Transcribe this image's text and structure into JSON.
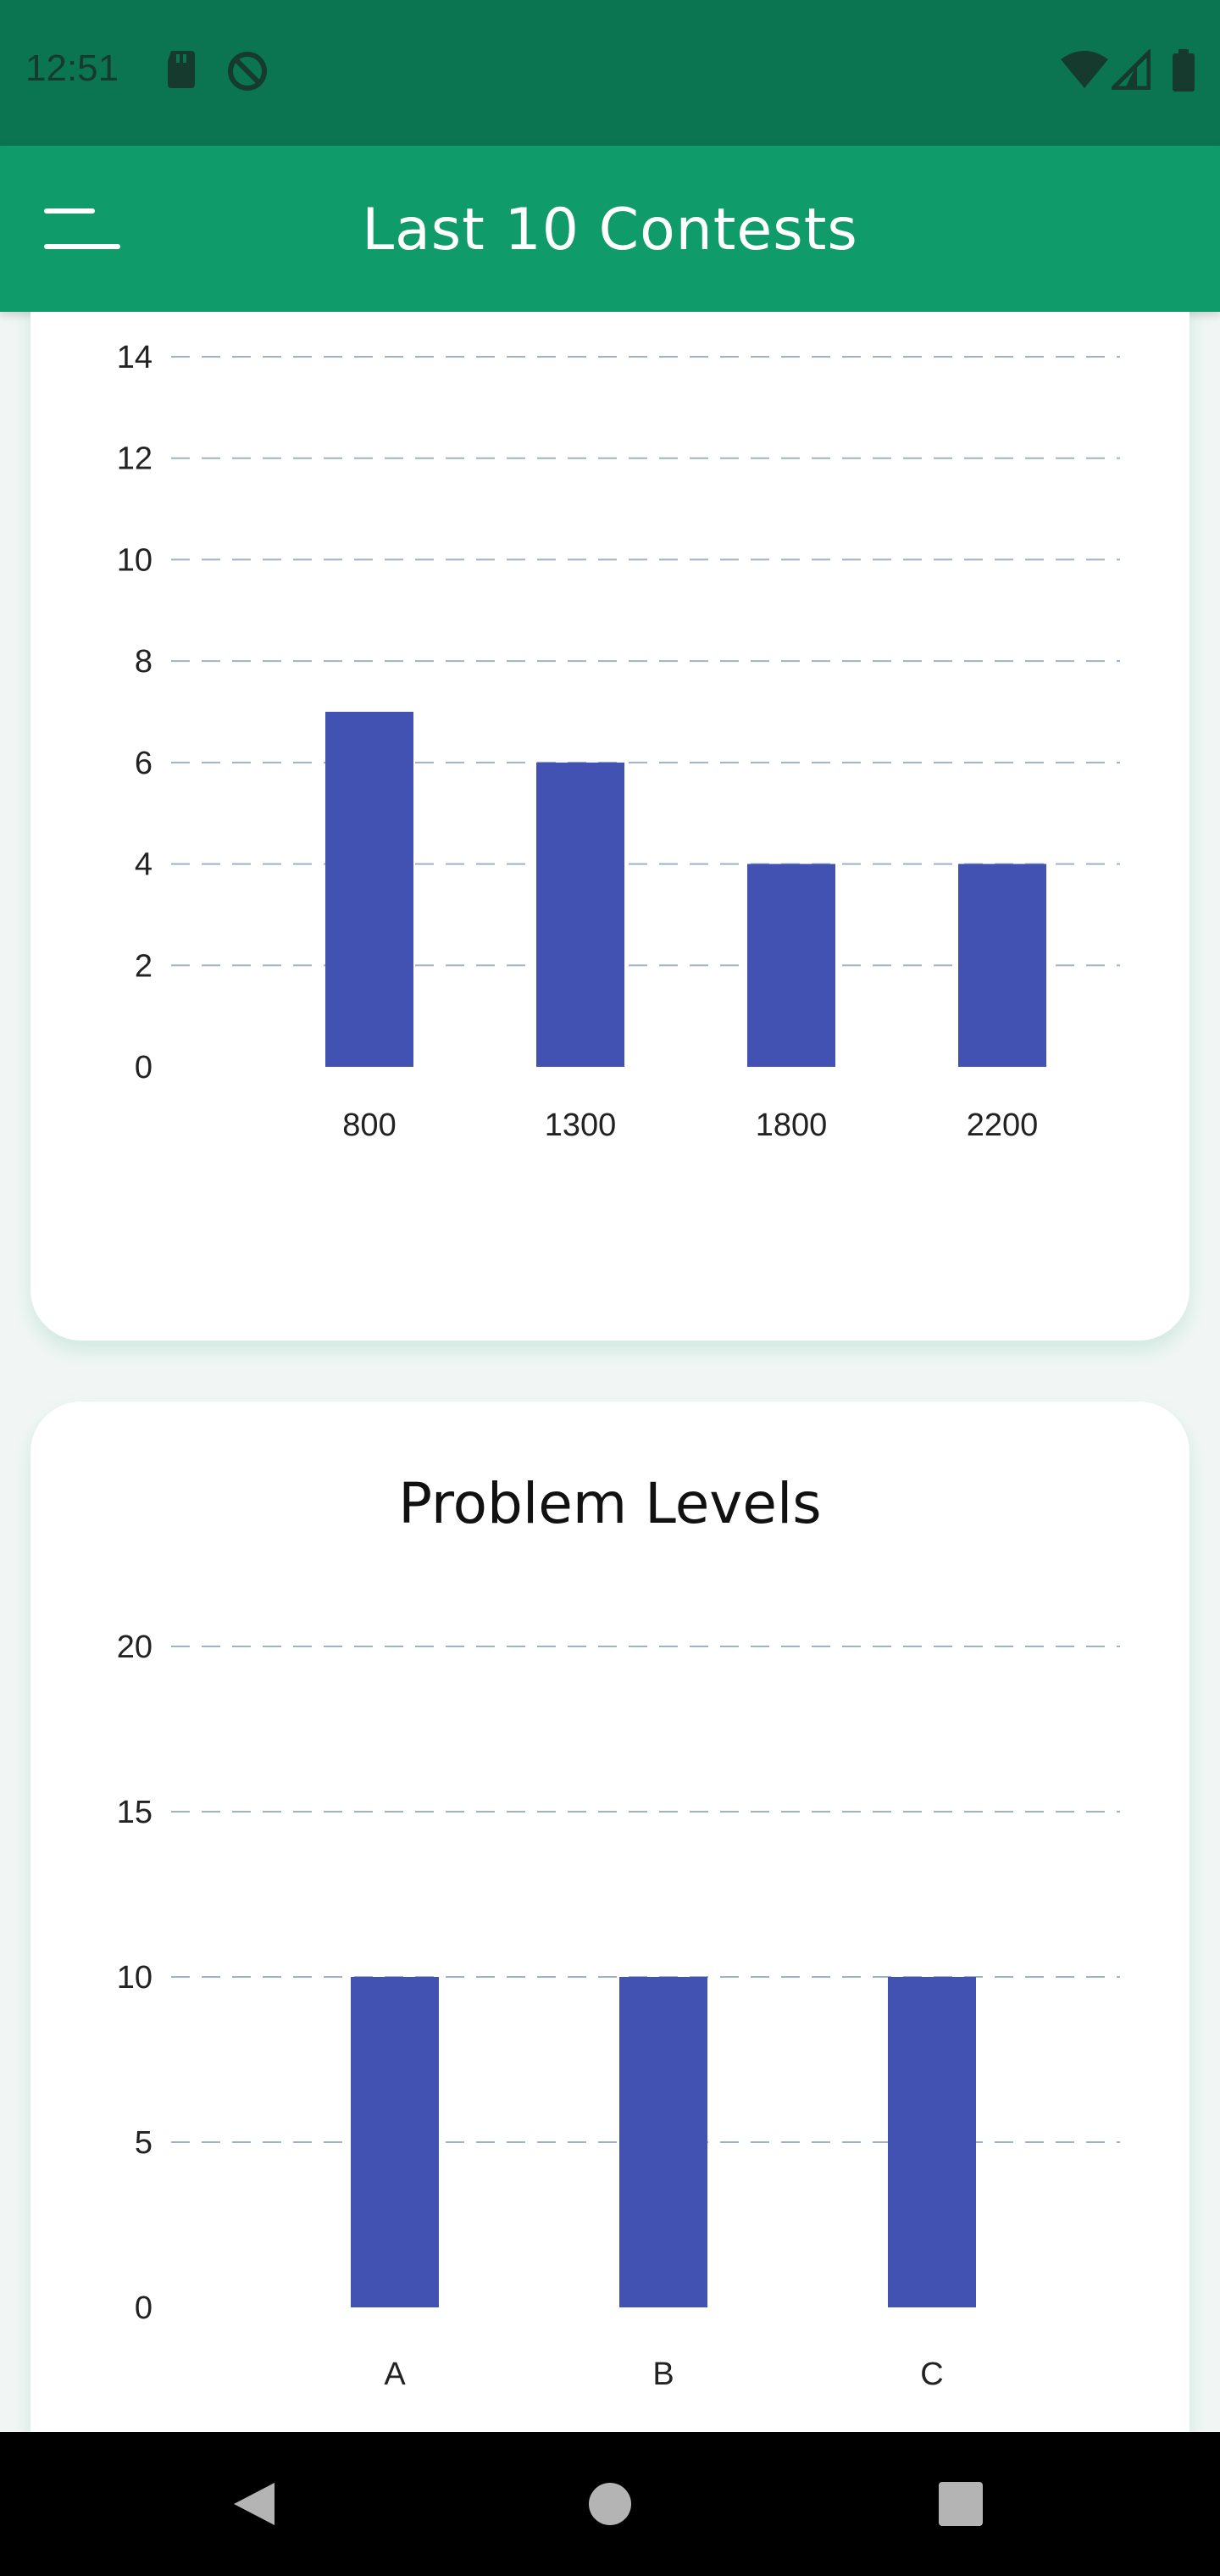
{
  "status_bar": {
    "time": "12:51",
    "icons": [
      "sd-card-icon",
      "no-disturb-icon",
      "wifi-icon",
      "signal-icon",
      "battery-icon"
    ]
  },
  "app_bar": {
    "title": "Last 10 Contests",
    "menu_icon": "menu-icon"
  },
  "colors": {
    "status_bar": "#0b7552",
    "app_bar": "#0f9b6a",
    "bar": "#4152b3",
    "grid": "#9fb3c8"
  },
  "charts": [
    {
      "chart_data": {
        "type": "bar",
        "title": "",
        "categories": [
          "800",
          "1300",
          "1800",
          "2200"
        ],
        "values": [
          7,
          6,
          4,
          4
        ],
        "ylim": [
          0,
          14
        ],
        "yticks": [
          0,
          2,
          4,
          6,
          8,
          10,
          12,
          14
        ],
        "grid": "dashed horizontal"
      }
    },
    {
      "chart_data": {
        "type": "bar",
        "title": "Problem Levels",
        "categories": [
          "A",
          "B",
          "C"
        ],
        "values": [
          10,
          10,
          10
        ],
        "ylim": [
          0,
          20
        ],
        "yticks": [
          0,
          5,
          10,
          15,
          20
        ],
        "grid": "dashed horizontal"
      }
    }
  ],
  "nav_bar": {
    "icons": [
      "back-icon",
      "home-icon",
      "recents-icon"
    ]
  }
}
